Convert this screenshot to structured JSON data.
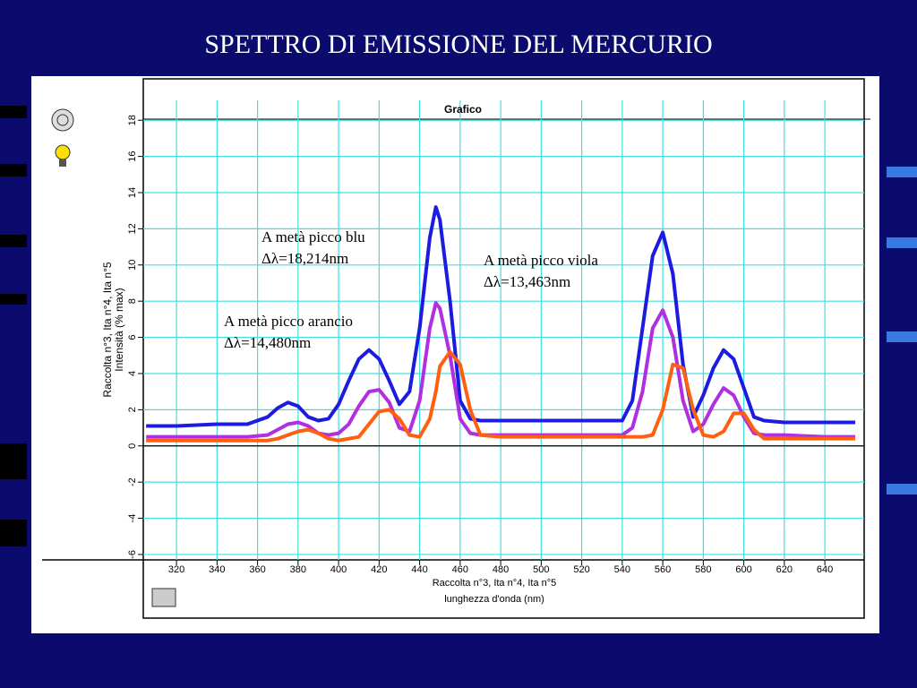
{
  "slide": {
    "title": "SPETTRO DI EMISSIONE DEL MERCURIO"
  },
  "chart_data": {
    "type": "line",
    "title": "Grafico",
    "y_label": [
      "Raccolta n°3, Ita n°4, Ita n°5",
      "Intensità (% max)"
    ],
    "x_label": [
      "Raccolta n°3, Ita n°4, Ita n°5",
      "lunghezza d'onda (nm)"
    ],
    "xlim": [
      303.6,
      659.4
    ],
    "ylim": [
      -6.3,
      19.1
    ],
    "xticks": [
      320,
      340,
      360,
      380,
      400,
      420,
      440,
      460,
      480,
      500,
      520,
      540,
      560,
      580,
      600,
      620,
      640
    ],
    "yticks": [
      -6,
      -4,
      -2,
      0,
      2,
      4,
      6,
      8,
      10,
      12,
      14,
      16,
      18
    ],
    "grid": true,
    "x": [
      305,
      320,
      340,
      355,
      365,
      370,
      375,
      380,
      385,
      390,
      395,
      400,
      405,
      410,
      415,
      420,
      425,
      430,
      435,
      440,
      445,
      448,
      450,
      455,
      460,
      465,
      470,
      480,
      500,
      520,
      540,
      545,
      550,
      555,
      560,
      565,
      570,
      575,
      580,
      585,
      590,
      595,
      600,
      605,
      610,
      620,
      640,
      655
    ],
    "series": [
      {
        "color": "#1c1ce0",
        "values": [
          1.1,
          1.1,
          1.2,
          1.2,
          1.6,
          2.1,
          2.4,
          2.2,
          1.6,
          1.4,
          1.5,
          2.3,
          3.6,
          4.8,
          5.3,
          4.8,
          3.6,
          2.3,
          3.0,
          6.5,
          11.5,
          13.2,
          12.5,
          8.0,
          2.5,
          1.5,
          1.4,
          1.4,
          1.4,
          1.4,
          1.4,
          2.5,
          6.5,
          10.5,
          11.8,
          9.5,
          4.5,
          1.6,
          2.8,
          4.3,
          5.3,
          4.8,
          3.2,
          1.6,
          1.4,
          1.3,
          1.3,
          1.3
        ]
      },
      {
        "color": "#b030e0",
        "values": [
          0.5,
          0.5,
          0.5,
          0.5,
          0.6,
          0.9,
          1.2,
          1.3,
          1.1,
          0.7,
          0.6,
          0.7,
          1.2,
          2.2,
          3.0,
          3.1,
          2.4,
          1.0,
          0.8,
          2.5,
          6.5,
          7.9,
          7.6,
          5.0,
          1.5,
          0.7,
          0.6,
          0.6,
          0.6,
          0.6,
          0.6,
          1.0,
          3.0,
          6.5,
          7.5,
          6.0,
          2.5,
          0.8,
          1.2,
          2.3,
          3.2,
          2.8,
          1.6,
          0.7,
          0.6,
          0.6,
          0.5,
          0.5
        ]
      },
      {
        "color": "#ff6010",
        "values": [
          0.3,
          0.3,
          0.3,
          0.3,
          0.3,
          0.4,
          0.6,
          0.8,
          0.9,
          0.7,
          0.4,
          0.3,
          0.4,
          0.5,
          1.2,
          1.9,
          2.0,
          1.5,
          0.6,
          0.5,
          1.5,
          3.0,
          4.4,
          5.2,
          4.5,
          2.0,
          0.6,
          0.5,
          0.5,
          0.5,
          0.5,
          0.5,
          0.5,
          0.6,
          2.0,
          4.5,
          4.3,
          2.0,
          0.6,
          0.5,
          0.8,
          1.8,
          1.8,
          0.9,
          0.4,
          0.4,
          0.4,
          0.4
        ]
      }
    ],
    "annotations": [
      [
        "A metà picco blu",
        "Δλ=18,214nm"
      ],
      [
        "A metà picco viola",
        "Δλ=13,463nm"
      ],
      [
        "A metà picco arancio",
        "Δλ=14,480nm"
      ]
    ]
  }
}
